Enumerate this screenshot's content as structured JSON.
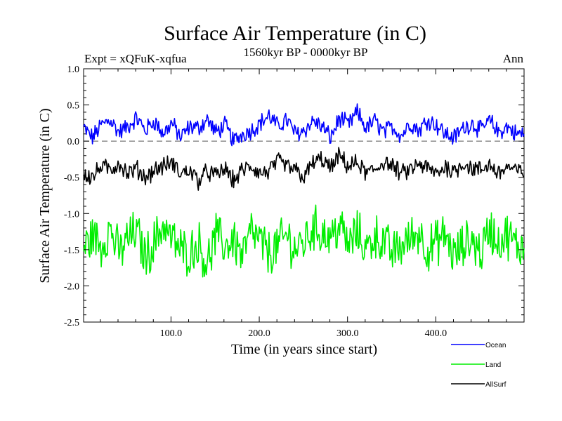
{
  "chart_data": {
    "type": "line",
    "title": "Surface Air Temperature (in C)",
    "subtitle_left": "Expt = xQFuK-xqfua",
    "subtitle_center": "1560kyr BP - 0000kyr BP",
    "subtitle_right": "Ann",
    "xlabel": "Time (in years since start)",
    "ylabel": "Surface Air Temperature (in C)",
    "xlim": [
      1,
      500
    ],
    "ylim": [
      -2.5,
      1.0
    ],
    "x_ticks": [
      100,
      200,
      300,
      400
    ],
    "x_tick_labels": [
      "100.0",
      "200.0",
      "300.0",
      "400.0"
    ],
    "y_ticks": [
      -2.5,
      -2.0,
      -1.5,
      -1.0,
      -0.5,
      0.0,
      0.5,
      1.0
    ],
    "y_tick_labels": [
      "-2.5",
      "-2.0",
      "-1.5",
      "-1.0",
      "-0.5",
      "0.0",
      "0.5",
      "1.0"
    ],
    "reference_line": {
      "y": 0.0,
      "style": "dashed"
    },
    "legend_position": "bottom-right",
    "series": [
      {
        "name": "Ocean",
        "color": "#0000ff",
        "x_start": 1,
        "x_step": 10,
        "values": [
          0.18,
          0.05,
          0.22,
          0.3,
          0.12,
          0.2,
          0.32,
          0.15,
          0.28,
          0.1,
          0.25,
          0.05,
          0.2,
          0.18,
          0.3,
          0.12,
          0.22,
          0.0,
          0.1,
          0.15,
          0.25,
          0.35,
          0.2,
          0.3,
          0.1,
          0.15,
          0.28,
          0.2,
          0.05,
          0.32,
          0.22,
          0.4,
          0.18,
          0.28,
          0.12,
          0.2,
          0.08,
          0.25,
          0.15,
          0.3,
          0.22,
          0.1,
          0.05,
          0.18,
          0.25,
          0.15,
          0.28,
          0.12,
          0.2,
          0.1
        ]
      },
      {
        "name": "Land",
        "color": "#00ee00",
        "x_start": 1,
        "x_step": 10,
        "values": [
          -1.5,
          -1.3,
          -1.45,
          -1.2,
          -1.55,
          -1.35,
          -1.25,
          -1.6,
          -1.4,
          -1.15,
          -1.35,
          -1.5,
          -1.55,
          -1.4,
          -1.7,
          -1.3,
          -1.45,
          -1.35,
          -1.6,
          -1.25,
          -1.4,
          -1.55,
          -1.45,
          -1.3,
          -1.5,
          -1.4,
          -1.2,
          -1.25,
          -1.35,
          -1.15,
          -1.45,
          -1.25,
          -1.5,
          -1.3,
          -1.4,
          -1.55,
          -1.45,
          -1.35,
          -1.25,
          -1.5,
          -1.4,
          -1.3,
          -1.6,
          -1.45,
          -1.35,
          -1.55,
          -1.2,
          -1.4,
          -1.3,
          -1.45
        ]
      },
      {
        "name": "AllSurf",
        "color": "#000000",
        "x_start": 1,
        "x_step": 10,
        "values": [
          -0.45,
          -0.5,
          -0.35,
          -0.4,
          -0.3,
          -0.45,
          -0.38,
          -0.5,
          -0.4,
          -0.35,
          -0.3,
          -0.45,
          -0.4,
          -0.55,
          -0.42,
          -0.48,
          -0.38,
          -0.55,
          -0.4,
          -0.35,
          -0.45,
          -0.42,
          -0.28,
          -0.35,
          -0.4,
          -0.5,
          -0.3,
          -0.25,
          -0.38,
          -0.2,
          -0.35,
          -0.3,
          -0.45,
          -0.4,
          -0.28,
          -0.35,
          -0.45,
          -0.4,
          -0.32,
          -0.38,
          -0.45,
          -0.35,
          -0.42,
          -0.3,
          -0.38,
          -0.4,
          -0.32,
          -0.45,
          -0.35,
          -0.42
        ]
      }
    ]
  }
}
